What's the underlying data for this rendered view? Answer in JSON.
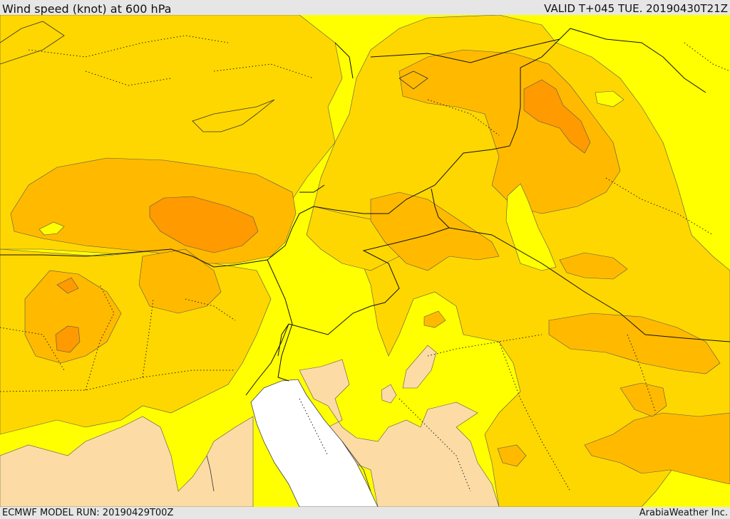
{
  "header": {
    "title": "Wind speed (knot) at 600 hPa",
    "valid": "VALID T+045 TUE. 20190430T21Z"
  },
  "footer": {
    "model_run": "ECMWF MODEL RUN: 20190429T00Z",
    "credit": "ArabiaWeather Inc."
  },
  "palette": {
    "lowest": "#fcdca4",
    "low": "#ffff00",
    "mid": "#ffd700",
    "high": "#ffba00",
    "higher": "#ff9a00",
    "highest": "#ff8000",
    "sea_gap": "#ffffff"
  }
}
